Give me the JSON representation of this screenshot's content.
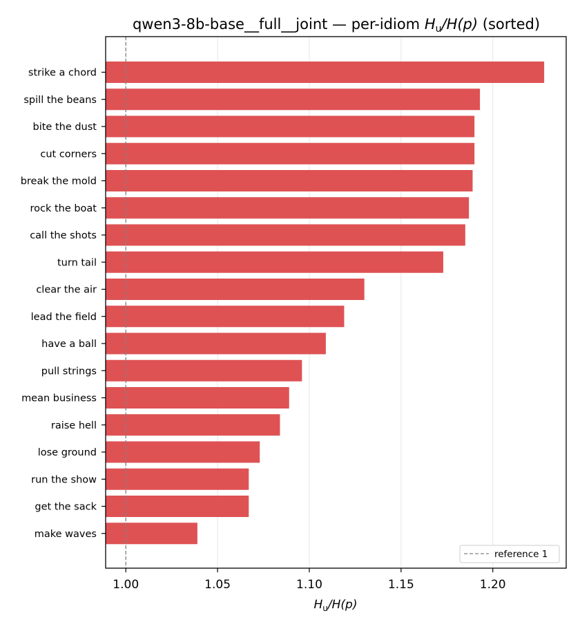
{
  "chart_data": {
    "type": "bar",
    "orientation": "horizontal",
    "title_prefix": "qwen3-8b-base__full__joint — per-idiom ",
    "title_math_H": "H",
    "title_math_sub": "u",
    "title_math_rest": "/H(p)",
    "title_suffix": " (sorted)",
    "xlabel_H": "H",
    "xlabel_sub": "u",
    "xlabel_rest": "/H(p)",
    "categories": [
      "strike a chord",
      "spill the beans",
      "bite the dust",
      "cut corners",
      "break the mold",
      "rock the boat",
      "call the shots",
      "turn tail",
      "clear the air",
      "lead the field",
      "have a ball",
      "pull strings",
      "mean business",
      "raise hell",
      "lose ground",
      "run the show",
      "get the sack",
      "make waves"
    ],
    "values": [
      1.228,
      1.193,
      1.19,
      1.19,
      1.189,
      1.187,
      1.185,
      1.173,
      1.13,
      1.119,
      1.109,
      1.096,
      1.089,
      1.084,
      1.073,
      1.067,
      1.067,
      1.039
    ],
    "xlim": [
      0.989,
      1.24
    ],
    "xticks": [
      "1.00",
      "1.05",
      "1.10",
      "1.15",
      "1.20"
    ],
    "xtick_values": [
      1.0,
      1.05,
      1.1,
      1.15,
      1.2
    ],
    "reference_value": 1.0,
    "legend_label": "reference 1",
    "legend_position": "lower right",
    "grid": "x",
    "bar_color": "#de5254",
    "grid_color": "#e6e6e6",
    "reference_color": "#808080"
  }
}
